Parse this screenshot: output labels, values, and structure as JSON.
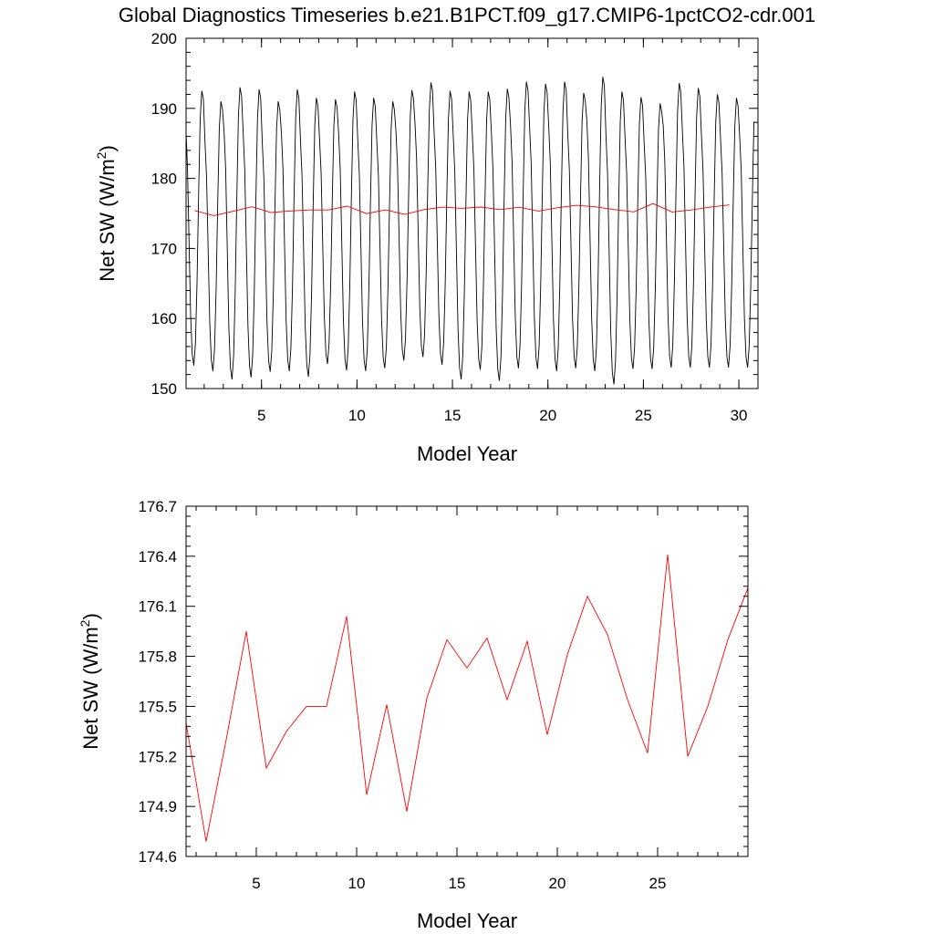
{
  "title": "Global Diagnostics Timeseries b.e21.B1PCT.f09_g17.CMIP6-1pctCO2-cdr.001",
  "chart_data": [
    {
      "type": "line",
      "xlabel": "Model Year",
      "ylabel": "Net SW (W/m",
      "ylabel_sup": "2",
      "ylabel_close": ")",
      "xlim": [
        1.05,
        31.0
      ],
      "ylim": [
        150,
        200
      ],
      "xticks": [
        5,
        10,
        15,
        20,
        25,
        30
      ],
      "yticks": [
        150,
        160,
        170,
        180,
        190,
        200
      ],
      "series": [
        {
          "color": "#000000",
          "monthly": {
            "start_year": 1.04,
            "months": 358,
            "peak_minima": [
              [
                192.5,
                153.3
              ],
              [
                191.0,
                152.5
              ],
              [
                193.0,
                151.3
              ],
              [
                192.7,
                151.6
              ],
              [
                191.0,
                152.4
              ],
              [
                192.7,
                152.5
              ],
              [
                191.5,
                151.7
              ],
              [
                191.3,
                153.5
              ],
              [
                192.4,
                152.6
              ],
              [
                191.5,
                152.5
              ],
              [
                191.0,
                152.9
              ],
              [
                192.6,
                154.0
              ],
              [
                193.7,
                154.5
              ],
              [
                192.5,
                153.4
              ],
              [
                192.4,
                151.3
              ],
              [
                192.4,
                152.7
              ],
              [
                192.8,
                151.1
              ],
              [
                193.8,
                152.9
              ],
              [
                193.5,
                152.8
              ],
              [
                193.8,
                152.5
              ],
              [
                192.2,
                152.9
              ],
              [
                194.5,
                152.5
              ],
              [
                192.4,
                150.6
              ],
              [
                191.6,
                152.8
              ],
              [
                190.7,
                152.8
              ],
              [
                193.6,
                153.0
              ],
              [
                192.9,
                153.0
              ],
              [
                192.0,
                153.0
              ],
              [
                191.5,
                153.0
              ],
              [
                192.0,
                153.0
              ]
            ]
          }
        },
        {
          "color": "#ff0000",
          "x": [
            1.5,
            2.5,
            3.5,
            4.5,
            5.5,
            6.5,
            7.5,
            8.5,
            9.5,
            10.5,
            11.5,
            12.5,
            13.5,
            14.5,
            15.5,
            16.5,
            17.5,
            18.5,
            19.5,
            20.5,
            21.5,
            22.5,
            23.5,
            24.5,
            25.5,
            26.5,
            27.5,
            28.5,
            29.5
          ],
          "values": [
            175.4,
            174.69,
            175.3,
            175.95,
            175.13,
            175.35,
            175.5,
            175.5,
            176.04,
            174.97,
            175.51,
            174.87,
            175.55,
            175.9,
            175.73,
            175.91,
            175.54,
            175.89,
            175.33,
            175.81,
            176.16,
            175.93,
            175.54,
            175.22,
            176.41,
            175.2,
            175.5,
            175.9,
            176.21
          ]
        }
      ]
    },
    {
      "type": "line",
      "xlabel": "Model Year",
      "ylabel": "Net SW (W/m",
      "ylabel_sup": "2",
      "ylabel_close": ")",
      "xlim": [
        1.5,
        29.5
      ],
      "ylim": [
        174.6,
        176.7
      ],
      "xticks": [
        5,
        10,
        15,
        20,
        25
      ],
      "yticks": [
        174.6,
        174.9,
        175.2,
        175.5,
        175.8,
        176.1,
        176.4,
        176.7
      ],
      "series": [
        {
          "color": "#ff0000",
          "x": [
            1.5,
            2.5,
            3.5,
            4.5,
            5.5,
            6.5,
            7.5,
            8.5,
            9.5,
            10.5,
            11.5,
            12.5,
            13.5,
            14.5,
            15.5,
            16.5,
            17.5,
            18.5,
            19.5,
            20.5,
            21.5,
            22.5,
            23.5,
            24.5,
            25.5,
            26.5,
            27.5,
            28.5,
            29.5
          ],
          "values": [
            175.4,
            174.69,
            175.3,
            175.95,
            175.13,
            175.35,
            175.5,
            175.5,
            176.04,
            174.97,
            175.51,
            174.87,
            175.55,
            175.9,
            175.73,
            175.91,
            175.54,
            175.89,
            175.33,
            175.81,
            176.16,
            175.93,
            175.54,
            175.22,
            176.41,
            175.2,
            175.5,
            175.9,
            176.21
          ]
        }
      ]
    }
  ]
}
